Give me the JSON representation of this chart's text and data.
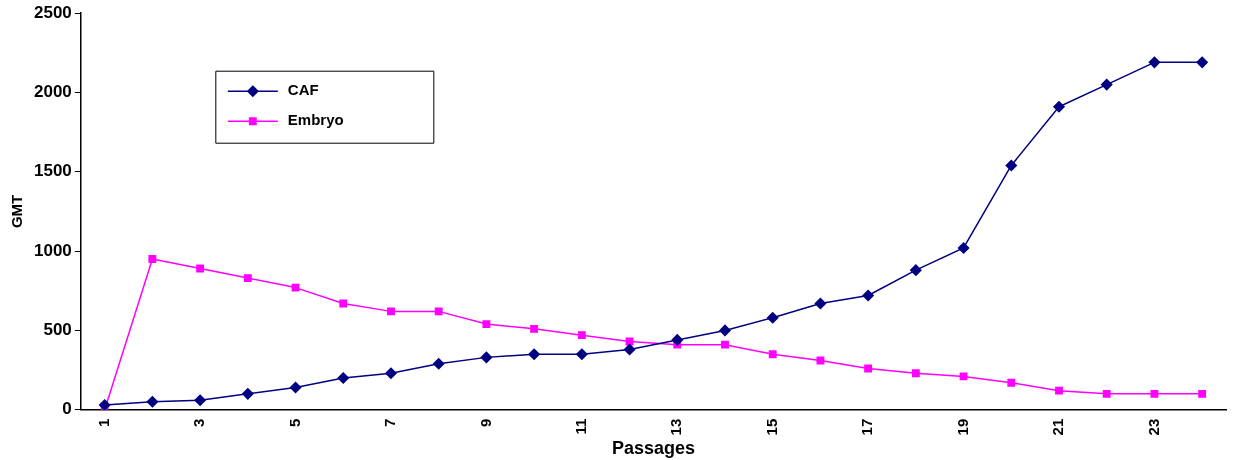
{
  "chart_data": {
    "type": "line",
    "xlabel": "Passages",
    "ylabel": "GMT",
    "categories": [
      "1",
      null,
      "3",
      null,
      "5",
      null,
      "7",
      null,
      "9",
      null,
      "11",
      null,
      "13",
      null,
      "15",
      null,
      "17",
      null,
      "19",
      null,
      "21",
      null,
      "23",
      null
    ],
    "series": [
      {
        "name": "CAF",
        "color": "#000080",
        "marker": "diamond",
        "values": [
          30,
          50,
          60,
          100,
          140,
          200,
          230,
          290,
          330,
          350,
          350,
          380,
          440,
          500,
          580,
          670,
          720,
          880,
          1020,
          1540,
          1910,
          2050,
          2190,
          2190
        ]
      },
      {
        "name": "Embryo",
        "color": "#ff00ff",
        "marker": "square",
        "values": [
          0,
          950,
          890,
          830,
          770,
          670,
          620,
          620,
          540,
          510,
          470,
          430,
          410,
          410,
          350,
          310,
          260,
          230,
          210,
          170,
          120,
          100,
          100,
          100
        ]
      }
    ],
    "ylim": [
      0,
      2500
    ],
    "yticks": [
      0,
      500,
      1000,
      1500,
      2000,
      2500
    ],
    "grid": false,
    "legend": "top left",
    "line_style": "solid"
  }
}
